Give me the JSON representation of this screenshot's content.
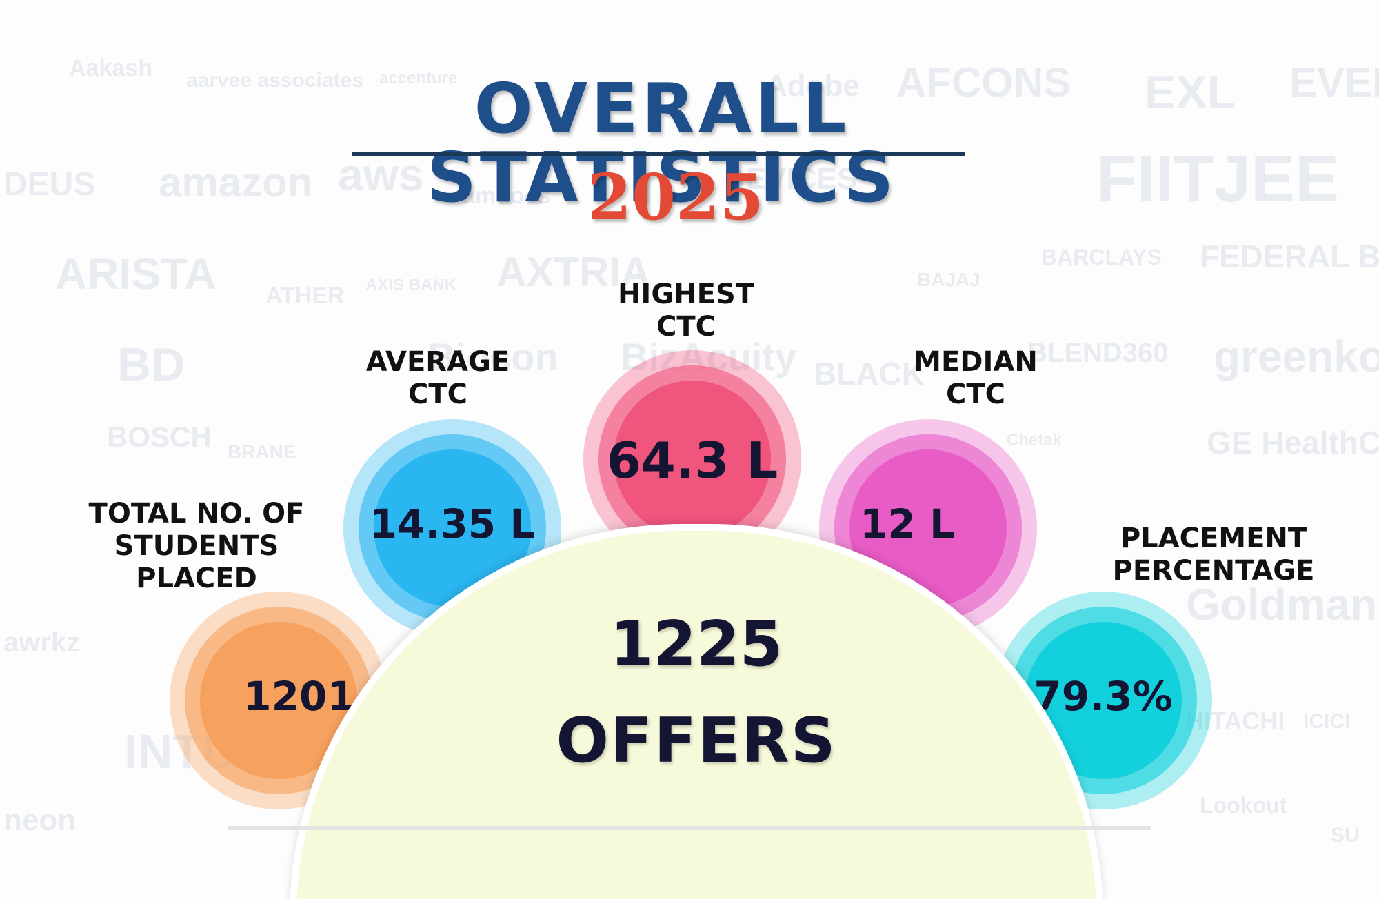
{
  "header": {
    "title": "OVERALL STATISTICS",
    "year": "2025"
  },
  "stats": {
    "students_placed": {
      "label": "TOTAL NO. OF STUDENTS PLACED",
      "value": "1201",
      "color": "#f7a15e"
    },
    "average_ctc": {
      "label": "AVERAGE CTC",
      "value": "14.35 L",
      "color": "#2fb8f2"
    },
    "highest_ctc": {
      "label": "HIGHEST CTC",
      "value": "64.3 L",
      "color": "#f0557e"
    },
    "median_ctc": {
      "label": "MEDIAN CTC",
      "value": "12 L",
      "color": "#e85cc6"
    },
    "placement_percentage": {
      "label": "PLACEMENT PERCENTAGE",
      "value": "79.3%",
      "color": "#13d1dc"
    }
  },
  "offers": {
    "number": "1225",
    "label": "OFFERS",
    "color": "#f6f9da"
  },
  "background_logos": [
    "Aakash",
    "aarvee associates",
    "accenture",
    "Adobe",
    "AFCONS",
    "EXL",
    "EVER",
    "DEUS",
    "amazon",
    "aws",
    "amdocs",
    "DEVICES",
    "FIITJEE",
    "ARISTA",
    "ATHER",
    "AXIS BANK",
    "AXTRIA",
    "BAJAJ",
    "BARCLAYS",
    "FEDERAL BANK",
    "BD",
    "Biocon",
    "BizAcuity",
    "BLACK",
    "BLEND360",
    "greenko",
    "BOSCH",
    "BRANE",
    "Chetak",
    "GE HealthCare",
    "Goldman Sachs",
    "awrkz",
    "INTUIT",
    "HITACHI",
    "ICICI",
    "Lookout",
    "neon",
    "SU"
  ]
}
